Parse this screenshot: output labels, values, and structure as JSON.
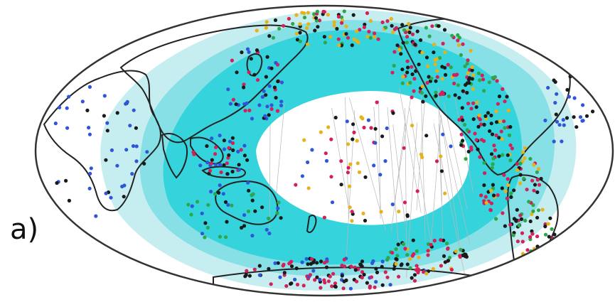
{
  "figure": {
    "panel_label": "a)"
  },
  "style": {
    "ocean": "#ffffff",
    "zone_outer": "#c6eef0",
    "zone_mid": "#86e0e6",
    "zone_inner": "#35d3dc",
    "continent_outline": "#222222",
    "plate_boundary": "#b8b8b8",
    "outline": "#333333"
  },
  "legend_colors": {
    "black": "#1a1a1a",
    "red": "#d4205a",
    "blue": "#2f56d8",
    "yellow": "#e6b21c",
    "green": "#2aa84a"
  }
}
